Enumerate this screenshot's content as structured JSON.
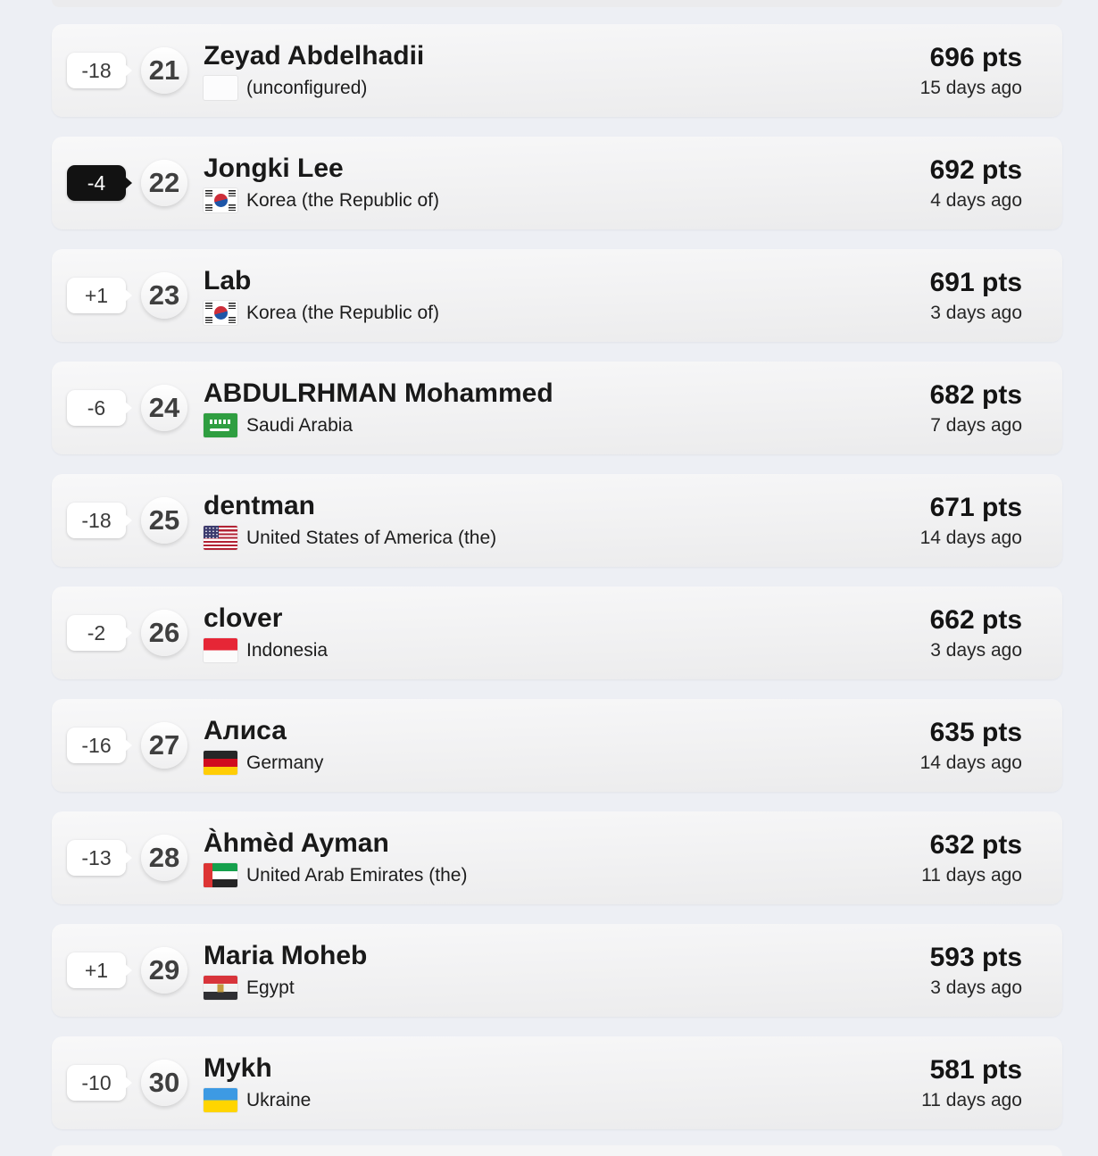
{
  "colors": {
    "page_background": "#edeff4",
    "card_top": "#f8f8f9",
    "card_bottom": "#ebebec",
    "badge_light_bg": "#ffffff",
    "badge_dark_bg": "#121212",
    "points_text": "#141414"
  },
  "leaderboard": {
    "rows": [
      {
        "rank_change": "-18",
        "badge_variant": "light",
        "rank": "21",
        "player_name": "Zeyad Abdelhadii",
        "country": "(unconfigured)",
        "flag": "unconfigured",
        "points": "696 pts",
        "last_active": "15 days ago"
      },
      {
        "rank_change": "-4",
        "badge_variant": "dark",
        "rank": "22",
        "player_name": "Jongki Lee",
        "country": "Korea (the Republic of)",
        "flag": "kr",
        "points": "692 pts",
        "last_active": "4 days ago"
      },
      {
        "rank_change": "+1",
        "badge_variant": "light",
        "rank": "23",
        "player_name": "Lab",
        "country": "Korea (the Republic of)",
        "flag": "kr",
        "points": "691 pts",
        "last_active": "3 days ago"
      },
      {
        "rank_change": "-6",
        "badge_variant": "light",
        "rank": "24",
        "player_name": "ABDULRHMAN Mohammed",
        "country": "Saudi Arabia",
        "flag": "sa",
        "points": "682 pts",
        "last_active": "7 days ago"
      },
      {
        "rank_change": "-18",
        "badge_variant": "light",
        "rank": "25",
        "player_name": "dentman",
        "country": "United States of America (the)",
        "flag": "us",
        "points": "671 pts",
        "last_active": "14 days ago"
      },
      {
        "rank_change": "-2",
        "badge_variant": "light",
        "rank": "26",
        "player_name": "clover",
        "country": "Indonesia",
        "flag": "id",
        "points": "662 pts",
        "last_active": "3 days ago"
      },
      {
        "rank_change": "-16",
        "badge_variant": "light",
        "rank": "27",
        "player_name": "Алиса",
        "country": "Germany",
        "flag": "de",
        "points": "635 pts",
        "last_active": "14 days ago"
      },
      {
        "rank_change": "-13",
        "badge_variant": "light",
        "rank": "28",
        "player_name": "Àhmèd Ayman",
        "country": "United Arab Emirates (the)",
        "flag": "ae",
        "points": "632 pts",
        "last_active": "11 days ago"
      },
      {
        "rank_change": "+1",
        "badge_variant": "light",
        "rank": "29",
        "player_name": "Maria Moheb",
        "country": "Egypt",
        "flag": "eg",
        "points": "593 pts",
        "last_active": "3 days ago"
      },
      {
        "rank_change": "-10",
        "badge_variant": "light",
        "rank": "30",
        "player_name": "Mykh",
        "country": "Ukraine",
        "flag": "ua",
        "points": "581 pts",
        "last_active": "11 days ago"
      }
    ]
  }
}
